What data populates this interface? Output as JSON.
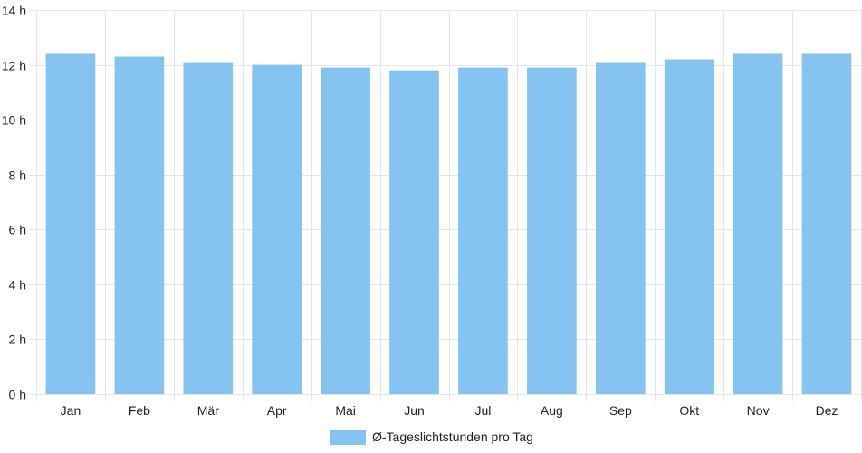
{
  "chart_data": {
    "type": "bar",
    "categories": [
      "Jan",
      "Feb",
      "Mär",
      "Apr",
      "Mai",
      "Jun",
      "Jul",
      "Aug",
      "Sep",
      "Okt",
      "Nov",
      "Dez"
    ],
    "series": [
      {
        "name": "Ø-Tageslichtstunden pro Tag",
        "values": [
          12.4,
          12.3,
          12.1,
          12.0,
          11.9,
          11.8,
          11.9,
          11.9,
          12.1,
          12.2,
          12.4,
          12.4
        ],
        "color": "#85c4f1"
      }
    ],
    "y_ticks": [
      "0 h",
      "2 h",
      "4 h",
      "6 h",
      "8 h",
      "10 h",
      "12 h",
      "14 h"
    ],
    "ylim": [
      0,
      14
    ],
    "grid": true,
    "legend_position": "bottom"
  }
}
